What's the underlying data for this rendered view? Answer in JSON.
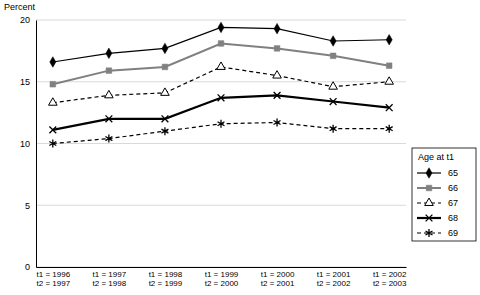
{
  "chart_data": {
    "type": "line",
    "y_label": "Percent",
    "legend_title": "Age at t1",
    "categories": [
      "t1 = 1996\nt2 = 1997",
      "t1 = 1997\nt2 = 1998",
      "t1 = 1998\nt2 = 1999",
      "t1 = 1999\nt2 = 2000",
      "t1 = 2000\nt2 = 2001",
      "t1 = 2001\nt2 = 2002",
      "t1 = 2002\nt2 = 2003"
    ],
    "series": [
      {
        "name": "65",
        "color": "#000000",
        "marker": "diamond",
        "line_style": "solid",
        "values": [
          16.6,
          17.3,
          17.7,
          19.4,
          19.3,
          18.3,
          18.4
        ]
      },
      {
        "name": "66",
        "color": "#808080",
        "marker": "square",
        "line_style": "solid",
        "values": [
          14.8,
          15.9,
          16.2,
          18.1,
          17.7,
          17.1,
          16.3
        ]
      },
      {
        "name": "67",
        "color": "#000000",
        "marker": "triangle",
        "line_style": "dashed",
        "values": [
          13.3,
          13.9,
          14.1,
          16.2,
          15.5,
          14.6,
          15.0
        ]
      },
      {
        "name": "68",
        "color": "#000000",
        "marker": "x",
        "line_style": "solid",
        "values": [
          11.1,
          12.0,
          12.0,
          13.7,
          13.9,
          13.4,
          12.9
        ]
      },
      {
        "name": "69",
        "color": "#000000",
        "marker": "star",
        "line_style": "dashed",
        "values": [
          10.0,
          10.4,
          11.0,
          11.6,
          11.7,
          11.2,
          11.2
        ]
      }
    ],
    "ylim": [
      0,
      20
    ],
    "yticks": [
      0,
      5,
      10,
      15,
      20
    ],
    "grid": true,
    "legend": "right"
  }
}
